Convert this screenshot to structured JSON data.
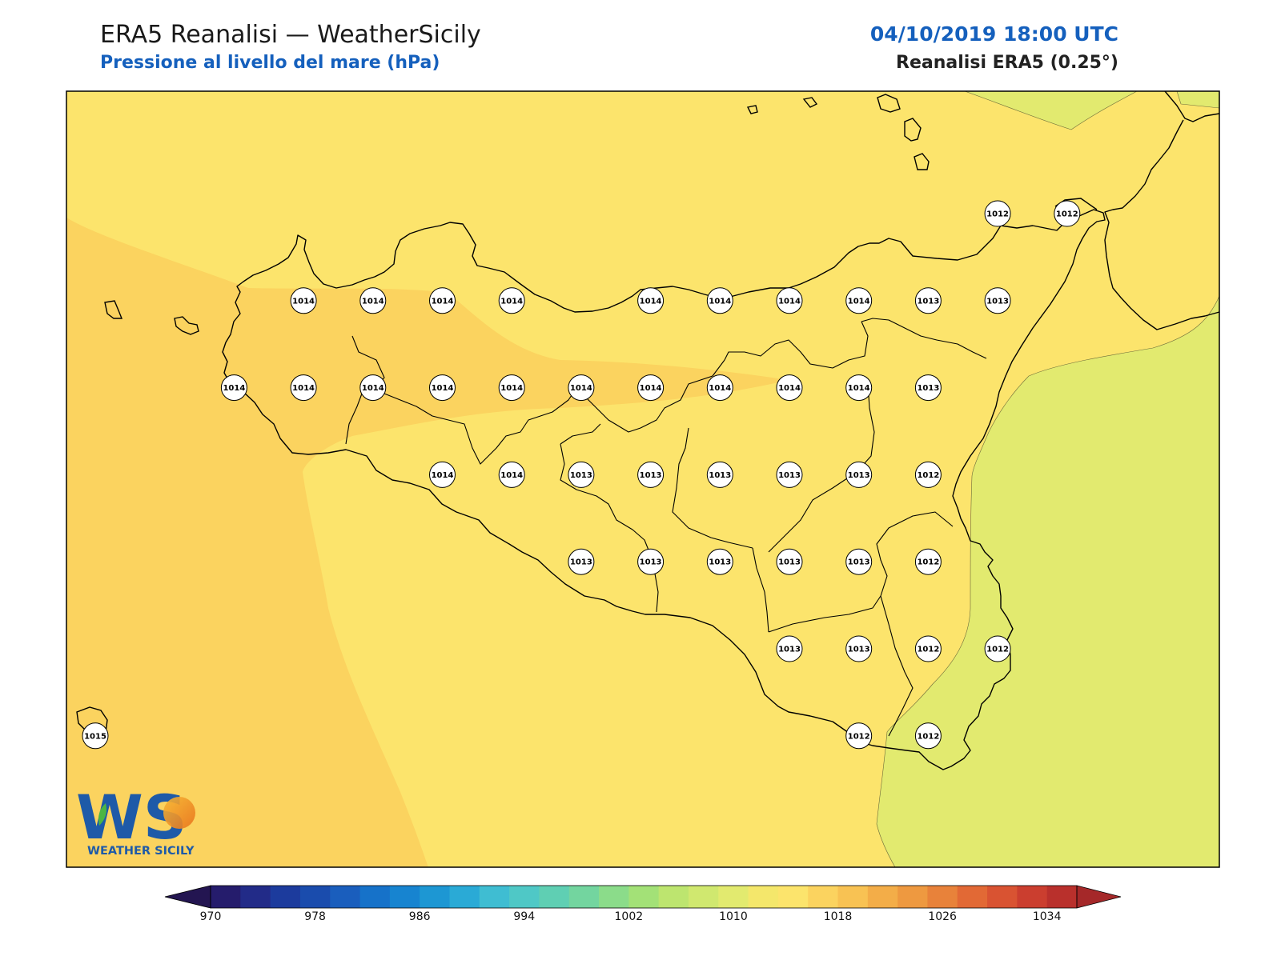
{
  "header": {
    "title": "ERA5 Reanalisi — WeatherSicily",
    "subtitle": "Pressione al livello del mare (hPa)",
    "datetime": "04/10/2019 18:00 UTC",
    "source": "Reanalisi ERA5 (0.25°)"
  },
  "map": {
    "field": "mean sea level pressure",
    "unit": "hPa",
    "region": "Sicily",
    "colors": {
      "1018": "#fbd35f",
      "1014": "#fce46c",
      "1010": "#e2ea6f",
      "coastline": "#000000"
    },
    "pressure_labels": [
      {
        "row": 0,
        "values": [
          null,
          null,
          null,
          null,
          null,
          null,
          null,
          null,
          null,
          null,
          null,
          null,
          null,
          1012,
          1012
        ]
      },
      {
        "row": 1,
        "values": [
          null,
          null,
          null,
          1014,
          1014,
          1014,
          1014,
          null,
          1014,
          1014,
          1014,
          1014,
          1013,
          1013,
          null
        ]
      },
      {
        "row": 2,
        "values": [
          null,
          null,
          1014,
          1014,
          1014,
          1014,
          1014,
          1014,
          1014,
          1014,
          1014,
          1014,
          1013,
          null,
          null
        ]
      },
      {
        "row": 3,
        "values": [
          null,
          null,
          null,
          null,
          null,
          1014,
          1014,
          1013,
          1013,
          1013,
          1013,
          1013,
          1012,
          null,
          null
        ]
      },
      {
        "row": 4,
        "values": [
          null,
          null,
          null,
          null,
          null,
          null,
          null,
          1013,
          1013,
          1013,
          1013,
          1013,
          1012,
          null,
          null
        ]
      },
      {
        "row": 5,
        "values": [
          null,
          null,
          null,
          null,
          null,
          null,
          null,
          null,
          null,
          null,
          1013,
          1013,
          1012,
          1012,
          null
        ]
      },
      {
        "row": 6,
        "values": [
          1015,
          null,
          null,
          null,
          null,
          null,
          null,
          null,
          null,
          null,
          null,
          1012,
          1012,
          null,
          null
        ]
      }
    ]
  },
  "colorbar": {
    "ticks": [
      "970",
      "978",
      "986",
      "994",
      "1002",
      "1010",
      "1018",
      "1026",
      "1034"
    ],
    "colors": [
      "#231551",
      "#251c6c",
      "#222b88",
      "#1c3b9d",
      "#1a4cad",
      "#1a5ebd",
      "#1672c9",
      "#1784d0",
      "#1d97d3",
      "#2aaad6",
      "#3fbdd2",
      "#4fc8c6",
      "#5fcfb3",
      "#73d59f",
      "#8bdc8a",
      "#a3e177",
      "#bde56f",
      "#d0e86f",
      "#e2ea6f",
      "#f4e76b",
      "#fce46c",
      "#fbd35f",
      "#f8c253",
      "#f3ad48",
      "#ee9940",
      "#e8823a",
      "#e26935",
      "#d95332",
      "#cb3e2f",
      "#b9302c",
      "#a52829"
    ]
  },
  "logo": {
    "text": "WS",
    "subtext": "WEATHER SICILY",
    "colors": {
      "primary": "#1e5aa8",
      "accent": "#f39c1f",
      "leaf": "#4bb543"
    }
  }
}
